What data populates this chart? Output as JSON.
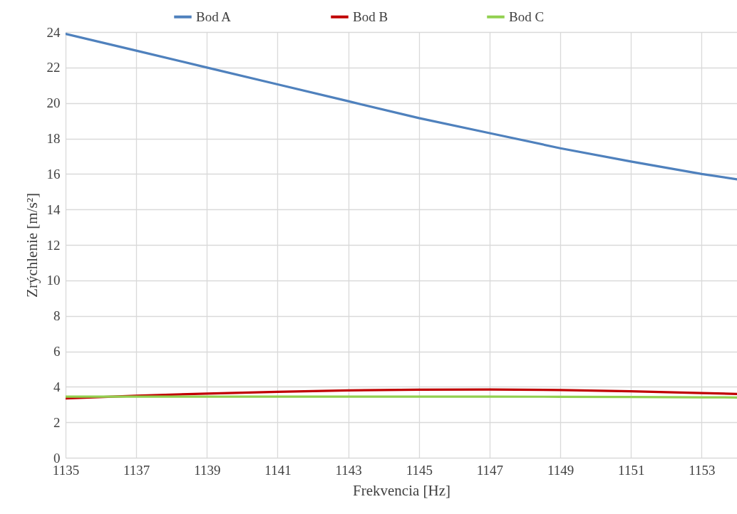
{
  "chart_data": {
    "type": "line",
    "xlabel": "Frekvencia [Hz]",
    "ylabel": "Zrýchlenie [m/s²]",
    "x": [
      1135,
      1137,
      1139,
      1141,
      1143,
      1145,
      1147,
      1149,
      1151,
      1153,
      1154
    ],
    "xlim": [
      1135,
      1154
    ],
    "xticks": [
      1135,
      1137,
      1139,
      1141,
      1143,
      1145,
      1147,
      1149,
      1151,
      1153
    ],
    "ylim": [
      0,
      24
    ],
    "yticks": [
      0,
      2,
      4,
      6,
      8,
      10,
      12,
      14,
      16,
      18,
      20,
      22,
      24
    ],
    "grid": true,
    "legend": "top",
    "marker": "none",
    "line_style": "solid",
    "series": [
      {
        "name": "Bod A",
        "color": "#4f81bd",
        "values": [
          23.9,
          22.95,
          22.0,
          21.05,
          20.1,
          19.15,
          18.3,
          17.45,
          16.7,
          16.0,
          15.7
        ]
      },
      {
        "name": "Bod B",
        "color": "#c00000",
        "values": [
          3.35,
          3.5,
          3.62,
          3.72,
          3.8,
          3.84,
          3.85,
          3.82,
          3.75,
          3.65,
          3.6
        ]
      },
      {
        "name": "Bod C",
        "color": "#92d050",
        "values": [
          3.45,
          3.45,
          3.45,
          3.45,
          3.45,
          3.45,
          3.45,
          3.44,
          3.43,
          3.41,
          3.4
        ]
      }
    ]
  }
}
